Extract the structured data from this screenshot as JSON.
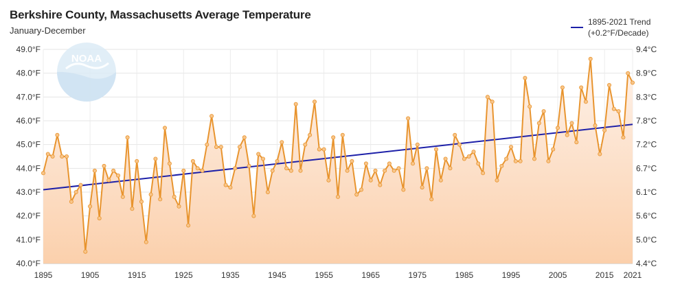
{
  "title": "Berkshire County, Massachusetts Average Temperature",
  "subtitle": "January-December",
  "legend": {
    "line1": "1895-2021 Trend",
    "line2": "(+0.2°F/Decade)"
  },
  "logo_text": "NOAA",
  "chart_data": {
    "type": "line",
    "title": "Berkshire County, Massachusetts Average Temperature",
    "subtitle": "January-December",
    "xlim": [
      1895,
      2021
    ],
    "ylim": [
      40.0,
      49.0
    ],
    "x_ticks": [
      1895,
      1905,
      1915,
      1925,
      1935,
      1945,
      1955,
      1965,
      1975,
      1985,
      1995,
      2005,
      2015,
      2021
    ],
    "y_ticks_left": [
      "40.0°F",
      "41.0°F",
      "42.0°F",
      "43.0°F",
      "44.0°F",
      "45.0°F",
      "46.0°F",
      "47.0°F",
      "48.0°F",
      "49.0°F"
    ],
    "y_ticks_right": [
      "4.4°C",
      "5.0°C",
      "5.6°C",
      "6.1°C",
      "6.7°C",
      "7.2°C",
      "7.8°C",
      "8.3°C",
      "8.9°C",
      "9.4°C"
    ],
    "grid": true,
    "colors": {
      "series": "#e8942e",
      "trend": "#1c1fa8",
      "fill_top": "#fde8d8",
      "fill_bottom": "#fbd2b0",
      "grid": "#e6e6e6"
    },
    "series": [
      {
        "start_year": 1895,
        "values": [
          43.8,
          44.6,
          44.5,
          45.4,
          44.5,
          44.5,
          42.6,
          43.0,
          43.3,
          40.5,
          42.4,
          43.9,
          41.9,
          44.1,
          43.5,
          43.9,
          43.7,
          42.8,
          45.3,
          42.3,
          44.3,
          42.6,
          40.9,
          42.9,
          44.4,
          42.7,
          45.7,
          44.2,
          42.8,
          42.4,
          43.9,
          41.6,
          44.3,
          44.0,
          43.9,
          45.0,
          46.2,
          44.9,
          44.9,
          43.3,
          43.2,
          44.0,
          44.9,
          45.3,
          44.1,
          42.0,
          44.6,
          44.4,
          43.0,
          43.9,
          44.3,
          45.1,
          44.0,
          43.9,
          46.7,
          43.9,
          45.0,
          45.4,
          46.8,
          44.8,
          44.8,
          43.5,
          45.3,
          42.8,
          45.4,
          43.9,
          44.3,
          42.9,
          43.1,
          44.2,
          43.5,
          43.9,
          43.3,
          43.9,
          44.2,
          43.9,
          44.0,
          43.1,
          46.1,
          44.2,
          45.0,
          43.2,
          44.0,
          42.7,
          44.8,
          43.5,
          44.4,
          44.0,
          45.4,
          45.0,
          44.4,
          44.5,
          44.7,
          44.2,
          43.8,
          47.0,
          46.8,
          43.5,
          44.1,
          44.4,
          44.9,
          44.3,
          44.3,
          47.8,
          46.6,
          44.4,
          45.9,
          46.4,
          44.3,
          44.8,
          45.7,
          47.4,
          45.4,
          45.9,
          45.1,
          47.4,
          46.8,
          48.6,
          45.8,
          44.6,
          45.6,
          47.5,
          46.5,
          46.4,
          45.3,
          48.0,
          47.6
        ]
      }
    ],
    "trend": {
      "start": [
        1895,
        43.1
      ],
      "end": [
        2021,
        45.85
      ]
    }
  }
}
